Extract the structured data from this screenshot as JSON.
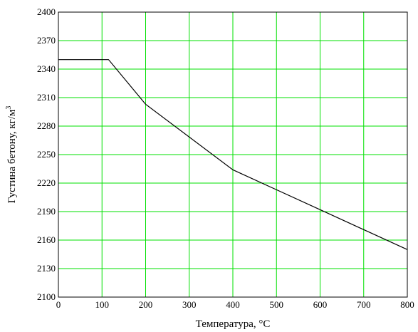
{
  "chart_data": {
    "type": "line",
    "title": "",
    "xlabel": "Температура, °С",
    "ylabel_main": "Густина бетону, кг/м",
    "ylabel_sup": "3",
    "xlim": [
      0,
      800
    ],
    "ylim": [
      2100,
      2400
    ],
    "xticks": [
      0,
      100,
      200,
      300,
      400,
      500,
      600,
      700,
      800
    ],
    "yticks": [
      2100,
      2130,
      2160,
      2190,
      2220,
      2250,
      2280,
      2310,
      2340,
      2370,
      2400
    ],
    "xtick_labels": [
      "0",
      "100",
      "200",
      "300",
      "400",
      "500",
      "600",
      "700",
      "800"
    ],
    "ytick_labels": [
      "2100",
      "2130",
      "2160",
      "2190",
      "2220",
      "2250",
      "2280",
      "2310",
      "2340",
      "2370",
      "2400"
    ],
    "grid": true,
    "colors": {
      "grid": "#00e000",
      "line": "#000000",
      "frame": "#000000"
    },
    "series": [
      {
        "x": [
          0,
          115,
          200,
          400,
          600,
          800
        ],
        "y": [
          2350,
          2350,
          2303,
          2234,
          2192,
          2150
        ]
      }
    ]
  }
}
